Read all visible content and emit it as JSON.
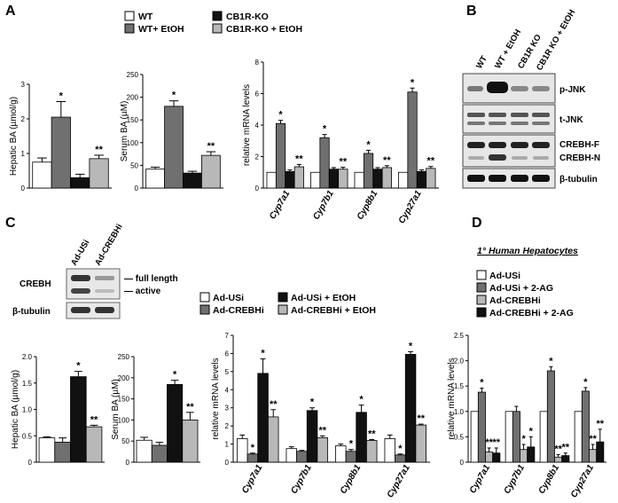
{
  "panels": {
    "A": "A",
    "B": "B",
    "C": "C",
    "D": "D"
  },
  "colors": {
    "WT": "#ffffff",
    "EtOH": "#707070",
    "KO": "#111111",
    "KOEtOH": "#b8b8b8"
  },
  "legends": {
    "A": [
      {
        "label": "WT",
        "color": "#ffffff"
      },
      {
        "label": "WT+ EtOH",
        "color": "#707070"
      },
      {
        "label": "CB1R-KO",
        "color": "#111111"
      },
      {
        "label": "CB1R-KO + EtOH",
        "color": "#b8b8b8"
      }
    ],
    "C": [
      {
        "label": "Ad-USi",
        "color": "#ffffff"
      },
      {
        "label": "Ad-CREBHi",
        "color": "#707070"
      },
      {
        "label": "Ad-USi + EtOH",
        "color": "#111111"
      },
      {
        "label": "Ad-CREBHi + EtOH",
        "color": "#b8b8b8"
      }
    ],
    "D": [
      {
        "label": "Ad-USi",
        "color": "#ffffff"
      },
      {
        "label": "Ad-USi + 2-AG",
        "color": "#707070"
      },
      {
        "label": "Ad-CREBHi",
        "color": "#b8b8b8"
      },
      {
        "label": "Ad-CREBHi + 2-AG",
        "color": "#111111"
      }
    ]
  },
  "blots": {
    "B": {
      "lanes": [
        "WT",
        "WT + EtOH",
        "CB1R KO",
        "CB1R KO + EtOH"
      ],
      "bands": [
        "p-JNK",
        "t-JNK",
        "CREBH-F",
        "CREBH-N",
        "β-tubulin"
      ]
    },
    "C": {
      "lanes": [
        "Ad-USi",
        "Ad-CREBHi"
      ],
      "row_labels": [
        "CREBH",
        "β-tubulin"
      ],
      "annotations": [
        "— full length",
        "— active"
      ]
    }
  },
  "d_title": "1° Human Hepatocytes",
  "chart_data": [
    {
      "id": "A-hepatic",
      "type": "bar",
      "categories": [
        ""
      ],
      "ylabel": "Hepatic BA (µmol/g)",
      "ylim": [
        0,
        3
      ],
      "yticks": [
        "0",
        "1",
        "2",
        "3"
      ],
      "series": [
        {
          "values": [
            0.75
          ],
          "err": [
            0.12
          ],
          "star": [
            ""
          ]
        },
        {
          "values": [
            2.05
          ],
          "err": [
            0.45
          ],
          "star": [
            "*"
          ]
        },
        {
          "values": [
            0.3
          ],
          "err": [
            0.1
          ],
          "star": [
            ""
          ]
        },
        {
          "values": [
            0.85
          ],
          "err": [
            0.1
          ],
          "star": [
            "**"
          ]
        }
      ]
    },
    {
      "id": "A-serum",
      "type": "bar",
      "categories": [
        ""
      ],
      "ylabel": "Serum BA (µM)",
      "ylim": [
        0,
        250
      ],
      "yticks": [
        "0",
        "50",
        "100",
        "150",
        "200",
        "250"
      ],
      "series": [
        {
          "values": [
            42
          ],
          "err": [
            4
          ],
          "star": [
            ""
          ]
        },
        {
          "values": [
            180
          ],
          "err": [
            12
          ],
          "star": [
            "*"
          ]
        },
        {
          "values": [
            33
          ],
          "err": [
            4
          ],
          "star": [
            ""
          ]
        },
        {
          "values": [
            72
          ],
          "err": [
            8
          ],
          "star": [
            "**"
          ]
        }
      ]
    },
    {
      "id": "A-mrna",
      "type": "bar",
      "categories": [
        "Cyp7a1",
        "Cyp7b1",
        "Cyp8b1",
        "Cyp27a1"
      ],
      "ylabel": "relative mRNA levels",
      "ylim": [
        0,
        8
      ],
      "yticks": [
        "0",
        "2",
        "4",
        "6",
        "8"
      ],
      "series": [
        {
          "values": [
            1.0,
            1.0,
            1.0,
            1.0
          ],
          "err": [
            0,
            0,
            0,
            0
          ],
          "star": [
            "",
            "",
            "",
            ""
          ]
        },
        {
          "values": [
            4.1,
            3.2,
            2.2,
            6.1
          ],
          "err": [
            0.2,
            0.2,
            0.2,
            0.25
          ],
          "star": [
            "*",
            "*",
            "*",
            "*"
          ]
        },
        {
          "values": [
            1.05,
            1.2,
            1.2,
            1.05
          ],
          "err": [
            0.1,
            0.1,
            0.1,
            0.1
          ],
          "star": [
            "",
            "",
            "",
            ""
          ]
        },
        {
          "values": [
            1.35,
            1.2,
            1.3,
            1.25
          ],
          "err": [
            0.15,
            0.12,
            0.12,
            0.12
          ],
          "star": [
            "**",
            "**",
            "**",
            "**"
          ]
        }
      ]
    },
    {
      "id": "C-hepatic",
      "type": "bar",
      "categories": [
        ""
      ],
      "ylabel": "Hepatic BA (µmol/g)",
      "ylim": [
        0,
        2
      ],
      "yticks": [
        "0",
        "0.5",
        "1.0",
        "1.5",
        "2.0"
      ],
      "series": [
        {
          "values": [
            0.46
          ],
          "err": [
            0.02
          ],
          "star": [
            ""
          ]
        },
        {
          "values": [
            0.38
          ],
          "err": [
            0.08
          ],
          "star": [
            ""
          ]
        },
        {
          "values": [
            1.62
          ],
          "err": [
            0.1
          ],
          "star": [
            "*"
          ]
        },
        {
          "values": [
            0.67
          ],
          "err": [
            0.03
          ],
          "star": [
            "**"
          ]
        }
      ]
    },
    {
      "id": "C-serum",
      "type": "bar",
      "categories": [
        ""
      ],
      "ylabel": "Serum BA (µM)",
      "ylim": [
        0,
        250
      ],
      "yticks": [
        "0",
        "50",
        "100",
        "150",
        "200",
        "250"
      ],
      "series": [
        {
          "values": [
            52
          ],
          "err": [
            7
          ],
          "star": [
            ""
          ]
        },
        {
          "values": [
            40
          ],
          "err": [
            7
          ],
          "star": [
            ""
          ]
        },
        {
          "values": [
            184
          ],
          "err": [
            10
          ],
          "star": [
            "*"
          ]
        },
        {
          "values": [
            100
          ],
          "err": [
            18
          ],
          "star": [
            "**"
          ]
        }
      ]
    },
    {
      "id": "C-mrna",
      "type": "bar",
      "categories": [
        "Cyp7a1",
        "Cyp7b1",
        "Cyp8b1",
        "Cyp27a1"
      ],
      "ylabel": "relative mRNA levels",
      "ylim": [
        0,
        7
      ],
      "yticks": [
        "0",
        "1",
        "2",
        "3",
        "4",
        "5",
        "6",
        "7"
      ],
      "series": [
        {
          "values": [
            1.3,
            0.75,
            0.9,
            1.3
          ],
          "err": [
            0.2,
            0.1,
            0.1,
            0.2
          ],
          "star": [
            "",
            "",
            "",
            ""
          ]
        },
        {
          "values": [
            0.45,
            0.6,
            0.6,
            0.4
          ],
          "err": [
            0.05,
            0.05,
            0.1,
            0.05
          ],
          "star": [
            "*",
            "",
            "*",
            "*"
          ]
        },
        {
          "values": [
            4.9,
            2.85,
            2.75,
            5.95
          ],
          "err": [
            0.8,
            0.15,
            0.4,
            0.15
          ],
          "star": [
            "*",
            "*",
            "*",
            "*"
          ]
        },
        {
          "values": [
            2.5,
            1.35,
            1.2,
            2.05
          ],
          "err": [
            0.4,
            0.1,
            0.05,
            0.05
          ],
          "star": [
            "**",
            "**",
            "**",
            "**"
          ]
        }
      ]
    },
    {
      "id": "D-mrna",
      "type": "bar",
      "categories": [
        "Cyp7a1",
        "Cyp7b1",
        "Cyp8b1",
        "Cyp27a1"
      ],
      "ylabel": "relative mRNA levels",
      "ylim": [
        0,
        2.5
      ],
      "yticks": [
        "0",
        "0.5",
        "1.0",
        "1.5",
        "2.0",
        "2.5"
      ],
      "series": [
        {
          "values": [
            1.0,
            1.0,
            1.0,
            1.0
          ],
          "err": [
            0,
            0,
            0,
            0
          ],
          "star": [
            "",
            "",
            "",
            ""
          ]
        },
        {
          "values": [
            1.38,
            1.0,
            1.8,
            1.4
          ],
          "err": [
            0.08,
            0.1,
            0.08,
            0.07
          ],
          "star": [
            "*",
            "",
            "*",
            "*"
          ]
        },
        {
          "values": [
            0.2,
            0.25,
            0.1,
            0.25
          ],
          "err": [
            0.08,
            0.1,
            0.05,
            0.1
          ],
          "star": [
            "**",
            "*",
            "**",
            "**"
          ]
        },
        {
          "values": [
            0.18,
            0.3,
            0.13,
            0.4
          ],
          "err": [
            0.1,
            0.2,
            0.05,
            0.25
          ],
          "star": [
            "**",
            "*",
            "**",
            "**"
          ]
        }
      ]
    }
  ]
}
